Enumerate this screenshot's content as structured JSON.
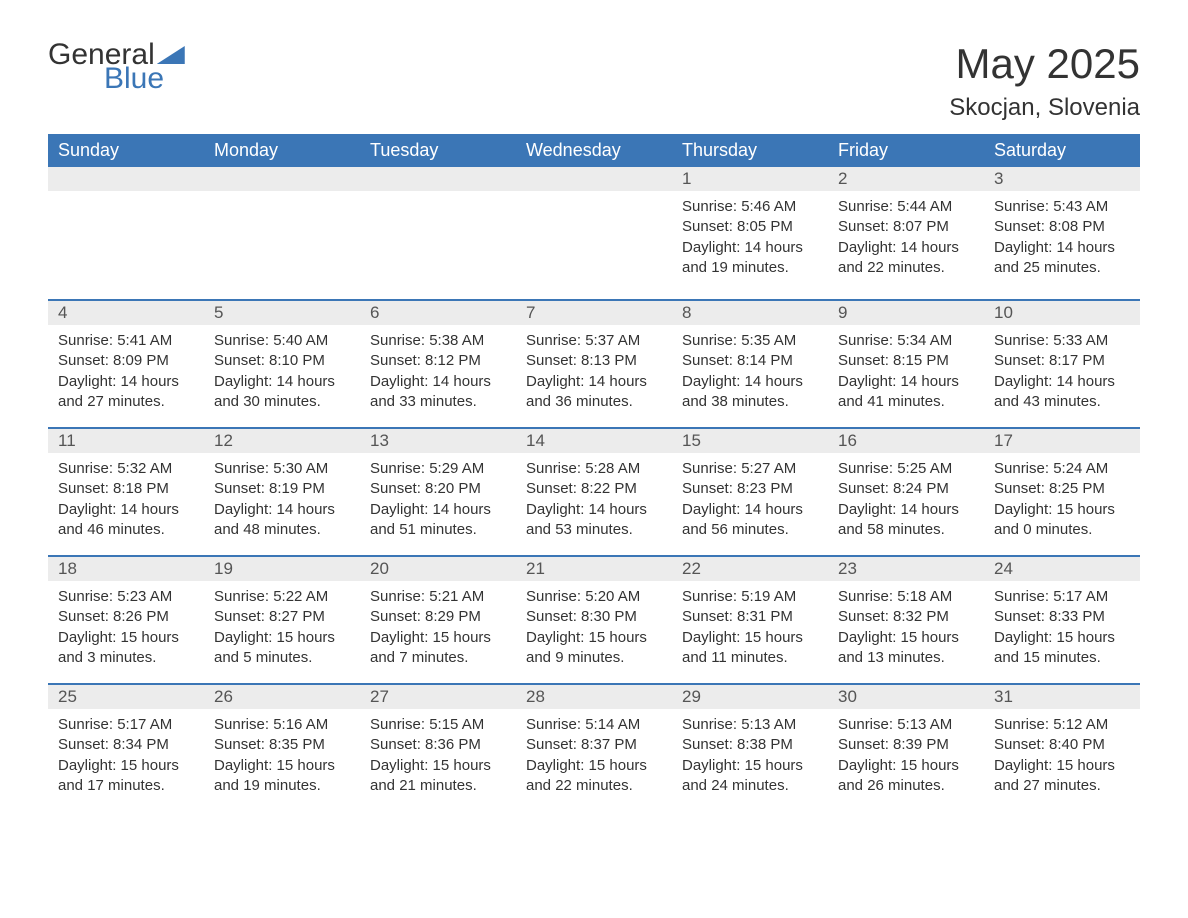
{
  "brand": {
    "part1": "General",
    "part2": "Blue"
  },
  "title": "May 2025",
  "location": "Skocjan, Slovenia",
  "colors": {
    "header_bg": "#3b76b6",
    "header_text": "#ffffff",
    "daynum_bg": "#ececec",
    "daynum_border": "#3b76b6",
    "body_text": "#333333",
    "page_bg": "#ffffff"
  },
  "typography": {
    "month_title_fontsize": 42,
    "location_fontsize": 24,
    "weekday_fontsize": 18,
    "daynum_fontsize": 17,
    "body_fontsize": 15
  },
  "weekdays": [
    "Sunday",
    "Monday",
    "Tuesday",
    "Wednesday",
    "Thursday",
    "Friday",
    "Saturday"
  ],
  "weeks": [
    [
      null,
      null,
      null,
      null,
      {
        "n": "1",
        "sr": "5:46 AM",
        "ss": "8:05 PM",
        "dl": "14 hours and 19 minutes."
      },
      {
        "n": "2",
        "sr": "5:44 AM",
        "ss": "8:07 PM",
        "dl": "14 hours and 22 minutes."
      },
      {
        "n": "3",
        "sr": "5:43 AM",
        "ss": "8:08 PM",
        "dl": "14 hours and 25 minutes."
      }
    ],
    [
      {
        "n": "4",
        "sr": "5:41 AM",
        "ss": "8:09 PM",
        "dl": "14 hours and 27 minutes."
      },
      {
        "n": "5",
        "sr": "5:40 AM",
        "ss": "8:10 PM",
        "dl": "14 hours and 30 minutes."
      },
      {
        "n": "6",
        "sr": "5:38 AM",
        "ss": "8:12 PM",
        "dl": "14 hours and 33 minutes."
      },
      {
        "n": "7",
        "sr": "5:37 AM",
        "ss": "8:13 PM",
        "dl": "14 hours and 36 minutes."
      },
      {
        "n": "8",
        "sr": "5:35 AM",
        "ss": "8:14 PM",
        "dl": "14 hours and 38 minutes."
      },
      {
        "n": "9",
        "sr": "5:34 AM",
        "ss": "8:15 PM",
        "dl": "14 hours and 41 minutes."
      },
      {
        "n": "10",
        "sr": "5:33 AM",
        "ss": "8:17 PM",
        "dl": "14 hours and 43 minutes."
      }
    ],
    [
      {
        "n": "11",
        "sr": "5:32 AM",
        "ss": "8:18 PM",
        "dl": "14 hours and 46 minutes."
      },
      {
        "n": "12",
        "sr": "5:30 AM",
        "ss": "8:19 PM",
        "dl": "14 hours and 48 minutes."
      },
      {
        "n": "13",
        "sr": "5:29 AM",
        "ss": "8:20 PM",
        "dl": "14 hours and 51 minutes."
      },
      {
        "n": "14",
        "sr": "5:28 AM",
        "ss": "8:22 PM",
        "dl": "14 hours and 53 minutes."
      },
      {
        "n": "15",
        "sr": "5:27 AM",
        "ss": "8:23 PM",
        "dl": "14 hours and 56 minutes."
      },
      {
        "n": "16",
        "sr": "5:25 AM",
        "ss": "8:24 PM",
        "dl": "14 hours and 58 minutes."
      },
      {
        "n": "17",
        "sr": "5:24 AM",
        "ss": "8:25 PM",
        "dl": "15 hours and 0 minutes."
      }
    ],
    [
      {
        "n": "18",
        "sr": "5:23 AM",
        "ss": "8:26 PM",
        "dl": "15 hours and 3 minutes."
      },
      {
        "n": "19",
        "sr": "5:22 AM",
        "ss": "8:27 PM",
        "dl": "15 hours and 5 minutes."
      },
      {
        "n": "20",
        "sr": "5:21 AM",
        "ss": "8:29 PM",
        "dl": "15 hours and 7 minutes."
      },
      {
        "n": "21",
        "sr": "5:20 AM",
        "ss": "8:30 PM",
        "dl": "15 hours and 9 minutes."
      },
      {
        "n": "22",
        "sr": "5:19 AM",
        "ss": "8:31 PM",
        "dl": "15 hours and 11 minutes."
      },
      {
        "n": "23",
        "sr": "5:18 AM",
        "ss": "8:32 PM",
        "dl": "15 hours and 13 minutes."
      },
      {
        "n": "24",
        "sr": "5:17 AM",
        "ss": "8:33 PM",
        "dl": "15 hours and 15 minutes."
      }
    ],
    [
      {
        "n": "25",
        "sr": "5:17 AM",
        "ss": "8:34 PM",
        "dl": "15 hours and 17 minutes."
      },
      {
        "n": "26",
        "sr": "5:16 AM",
        "ss": "8:35 PM",
        "dl": "15 hours and 19 minutes."
      },
      {
        "n": "27",
        "sr": "5:15 AM",
        "ss": "8:36 PM",
        "dl": "15 hours and 21 minutes."
      },
      {
        "n": "28",
        "sr": "5:14 AM",
        "ss": "8:37 PM",
        "dl": "15 hours and 22 minutes."
      },
      {
        "n": "29",
        "sr": "5:13 AM",
        "ss": "8:38 PM",
        "dl": "15 hours and 24 minutes."
      },
      {
        "n": "30",
        "sr": "5:13 AM",
        "ss": "8:39 PM",
        "dl": "15 hours and 26 minutes."
      },
      {
        "n": "31",
        "sr": "5:12 AM",
        "ss": "8:40 PM",
        "dl": "15 hours and 27 minutes."
      }
    ]
  ],
  "labels": {
    "sunrise_prefix": "Sunrise: ",
    "sunset_prefix": "Sunset: ",
    "daylight_prefix": "Daylight: "
  }
}
